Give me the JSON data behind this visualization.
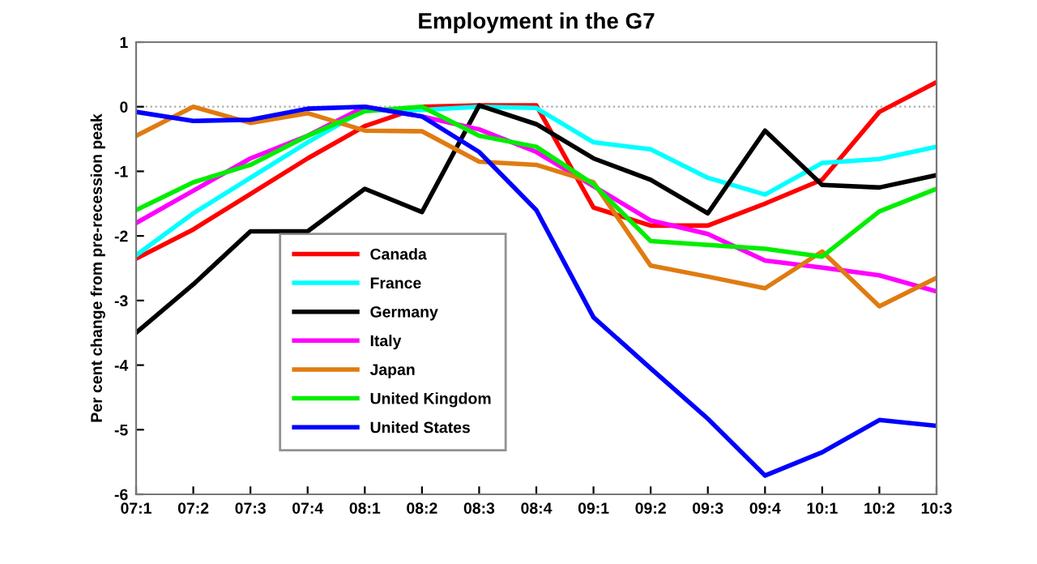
{
  "chart_data": {
    "type": "line",
    "title": "Employment in the G7",
    "ylabel": "Per cent change from pre-recession peak",
    "categories": [
      "07:1",
      "07:2",
      "07:3",
      "07:4",
      "08:1",
      "08:2",
      "08:3",
      "08:4",
      "09:1",
      "09:2",
      "09:3",
      "09:4",
      "10:1",
      "10:2",
      "10:3"
    ],
    "series": [
      {
        "name": "Canada",
        "color": "#ff0000",
        "values": [
          -2.35,
          -1.9,
          -1.35,
          -0.8,
          -0.3,
          0,
          0.02,
          0.02,
          -1.56,
          -1.84,
          -1.84,
          -1.5,
          -1.13,
          -0.08,
          0.38
        ]
      },
      {
        "name": "France",
        "color": "#00ffff",
        "values": [
          -2.3,
          -1.65,
          -1.1,
          -0.55,
          -0.05,
          -0.05,
          0,
          -0.02,
          -0.55,
          -0.66,
          -1.1,
          -1.36,
          -0.87,
          -0.81,
          -0.62
        ]
      },
      {
        "name": "Germany",
        "color": "#000000",
        "values": [
          -3.5,
          -2.75,
          -1.93,
          -1.93,
          -1.27,
          -1.63,
          0.02,
          -0.27,
          -0.8,
          -1.13,
          -1.65,
          -0.37,
          -1.21,
          -1.25,
          -1.06
        ]
      },
      {
        "name": "Italy",
        "color": "#ff00ff",
        "values": [
          -1.8,
          -1.3,
          -0.8,
          -0.45,
          0,
          -0.15,
          -0.35,
          -0.7,
          -1.23,
          -1.76,
          -1.97,
          -2.38,
          -2.49,
          -2.61,
          -2.86
        ]
      },
      {
        "name": "Japan",
        "color": "#e07b10",
        "values": [
          -0.45,
          0,
          -0.25,
          -0.1,
          -0.37,
          -0.38,
          -0.85,
          -0.9,
          -1.17,
          -2.46,
          -2.63,
          -2.81,
          -2.24,
          -3.09,
          -2.65
        ]
      },
      {
        "name": "United Kingdom",
        "color": "#00ee00",
        "values": [
          -1.6,
          -1.17,
          -0.9,
          -0.45,
          -0.07,
          0,
          -0.45,
          -0.62,
          -1.2,
          -2.08,
          -2.14,
          -2.2,
          -2.32,
          -1.62,
          -1.27
        ]
      },
      {
        "name": "United States",
        "color": "#0000ff",
        "values": [
          -0.08,
          -0.22,
          -0.2,
          -0.03,
          0,
          -0.15,
          -0.7,
          -1.6,
          -3.26,
          -4.05,
          -4.83,
          -5.71,
          -5.35,
          -4.85,
          -4.94
        ]
      }
    ],
    "ylim": [
      -6,
      1
    ],
    "yticks": [
      -6,
      -5,
      -4,
      -3,
      -2,
      -1,
      0,
      1
    ],
    "ref_lines": [
      {
        "axis": "y",
        "value": 0,
        "color": "#aaaaaa",
        "line_style": "dotted"
      }
    ],
    "legend": "bottom left",
    "grid": false
  }
}
